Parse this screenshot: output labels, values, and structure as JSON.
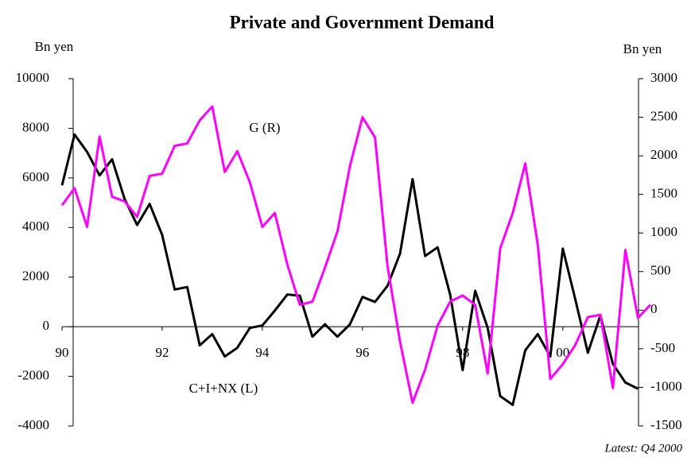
{
  "chart_data": {
    "type": "line",
    "title": "Private and Government Demand",
    "y_label": "Bn yen",
    "y2_label": "Bn yen",
    "annotations": [
      "G (R)",
      "C+I+NX (L)"
    ],
    "note": "Latest: Q4 2000",
    "x": [
      90,
      90.25,
      90.5,
      90.75,
      91,
      91.25,
      91.5,
      91.75,
      92,
      92.25,
      92.5,
      92.75,
      93,
      93.25,
      93.5,
      93.75,
      94,
      94.25,
      94.5,
      94.75,
      95,
      95.25,
      95.5,
      95.75,
      96,
      96.25,
      96.5,
      96.75,
      97,
      97.25,
      97.5,
      97.75,
      98,
      98.25,
      98.5,
      98.75,
      99,
      99.25,
      99.5,
      99.75,
      100,
      100.25,
      100.5,
      100.75,
      101,
      101.25,
      101.5,
      101.75
    ],
    "xlim": [
      90,
      101.75
    ],
    "xticks": [
      90,
      92,
      94,
      96,
      98,
      {
        "value": 100,
        "label": "00"
      }
    ],
    "ylim": [
      -4000,
      10000
    ],
    "yticks": [
      10000,
      8000,
      6000,
      4000,
      2000,
      0,
      -2000,
      -4000
    ],
    "y2lim": [
      -1500,
      3000
    ],
    "y2ticks": [
      3000,
      2500,
      2000,
      1500,
      1000,
      500,
      0,
      -500,
      -1000,
      -1500
    ],
    "series": [
      {
        "name": "C+I+NX (L)",
        "color": "#000000",
        "axis": "y",
        "values": [
          5700,
          7750,
          7050,
          6100,
          6750,
          5150,
          4100,
          4950,
          3700,
          1500,
          1600,
          -750,
          -300,
          -1200,
          -850,
          -50,
          50,
          650,
          1300,
          1250,
          -400,
          100,
          -400,
          100,
          1200,
          1000,
          1650,
          2950,
          5950,
          2850,
          3200,
          1300,
          -1750,
          1450,
          -50,
          -2800,
          -3150,
          -950,
          -300,
          -1200,
          3150,
          1100,
          -1050,
          450,
          -1500,
          -2250,
          -2500,
          null
        ]
      },
      {
        "name": "G (R)",
        "color": "#ff00ff",
        "axis": "y2",
        "values": [
          1360,
          1580,
          1080,
          2250,
          1470,
          1410,
          1210,
          1740,
          1770,
          2130,
          2160,
          2460,
          2640,
          1790,
          2060,
          1660,
          1080,
          1260,
          590,
          70,
          110,
          550,
          1020,
          1870,
          2500,
          2240,
          570,
          -410,
          -1200,
          -770,
          -200,
          110,
          190,
          70,
          -820,
          800,
          1260,
          1900,
          850,
          -890,
          -700,
          -450,
          -90,
          -60,
          -1010,
          780,
          -100,
          70
        ]
      }
    ]
  }
}
